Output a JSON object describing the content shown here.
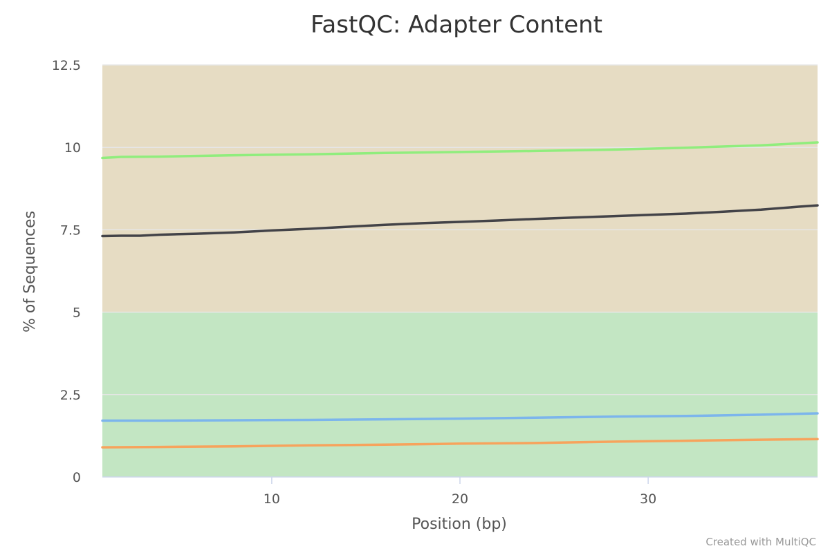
{
  "credit": "Created with MultiQC",
  "chart_data": {
    "type": "line",
    "title": "FastQC: Adapter Content",
    "xlabel": "Position (bp)",
    "ylabel": "% of Sequences",
    "xlim": [
      1,
      39
    ],
    "ylim": [
      0,
      12.5
    ],
    "x_ticks": [
      10,
      20,
      30
    ],
    "y_ticks": [
      0,
      2.5,
      5,
      7.5,
      10,
      12.5
    ],
    "y_tick_labels": [
      "0",
      "2.5",
      "5",
      "7.5",
      "10",
      "12.5"
    ],
    "grid": true,
    "legend": "none",
    "bands": [
      {
        "from": 0,
        "to": 5,
        "color": "#c3e6c3"
      },
      {
        "from": 5,
        "to": 12.5,
        "color": "#e6dcc3"
      }
    ],
    "series": [
      {
        "color": "#90ed7d",
        "points": [
          [
            1,
            9.68
          ],
          [
            2,
            9.71
          ],
          [
            4,
            9.72
          ],
          [
            8,
            9.76
          ],
          [
            12,
            9.79
          ],
          [
            16,
            9.83
          ],
          [
            20,
            9.86
          ],
          [
            24,
            9.89
          ],
          [
            28,
            9.93
          ],
          [
            32,
            9.99
          ],
          [
            36,
            10.06
          ],
          [
            39,
            10.15
          ]
        ]
      },
      {
        "color": "#434348",
        "points": [
          [
            1,
            7.31
          ],
          [
            2,
            7.32
          ],
          [
            3,
            7.32
          ],
          [
            4,
            7.35
          ],
          [
            6,
            7.38
          ],
          [
            8,
            7.42
          ],
          [
            10,
            7.48
          ],
          [
            12,
            7.53
          ],
          [
            14,
            7.59
          ],
          [
            16,
            7.65
          ],
          [
            18,
            7.7
          ],
          [
            20,
            7.74
          ],
          [
            22,
            7.78
          ],
          [
            24,
            7.83
          ],
          [
            26,
            7.87
          ],
          [
            28,
            7.91
          ],
          [
            30,
            7.95
          ],
          [
            32,
            7.99
          ],
          [
            34,
            8.05
          ],
          [
            36,
            8.11
          ],
          [
            38,
            8.2
          ],
          [
            39,
            8.24
          ]
        ]
      },
      {
        "color": "#7cb5ec",
        "points": [
          [
            1,
            1.71
          ],
          [
            4,
            1.71
          ],
          [
            8,
            1.72
          ],
          [
            12,
            1.73
          ],
          [
            16,
            1.75
          ],
          [
            20,
            1.77
          ],
          [
            24,
            1.8
          ],
          [
            28,
            1.83
          ],
          [
            32,
            1.85
          ],
          [
            36,
            1.89
          ],
          [
            39,
            1.93
          ]
        ]
      },
      {
        "color": "#f7a35c",
        "points": [
          [
            1,
            0.9
          ],
          [
            4,
            0.91
          ],
          [
            8,
            0.93
          ],
          [
            12,
            0.96
          ],
          [
            16,
            0.98
          ],
          [
            20,
            1.01
          ],
          [
            24,
            1.03
          ],
          [
            28,
            1.07
          ],
          [
            32,
            1.1
          ],
          [
            36,
            1.13
          ],
          [
            39,
            1.15
          ]
        ]
      }
    ]
  }
}
